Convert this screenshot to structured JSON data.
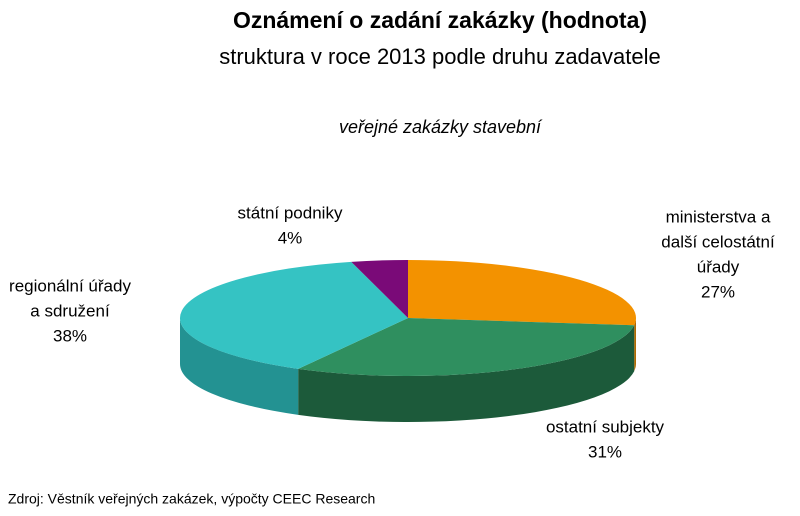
{
  "chart_data": {
    "type": "pie",
    "title": "Oznámení o zadání zakázky (hodnota)",
    "subtitle": "struktura v roce 2013 podle druhu zadavatele",
    "subtitle2": "veřejné zakázky stavební",
    "categories": [
      [
        "ministerstva a",
        "další celostátní",
        "úřady"
      ],
      [
        "ostatní subjekty"
      ],
      [
        "regionální úřady",
        "a sdružení"
      ],
      [
        "státní podniky"
      ]
    ],
    "values": [
      27,
      31,
      38,
      4
    ],
    "value_labels": [
      "27%",
      "31%",
      "38%",
      "4%"
    ],
    "colors": [
      "#f39200",
      "#2f8f5f",
      "#35c3c3",
      "#7a0a78"
    ],
    "side_colors": [
      "#b06a00",
      "#1c5a3a",
      "#239292",
      "#4e064d"
    ],
    "source": "Zdroj: Věstník veřejných zakázek, výpočty CEEC Research"
  }
}
